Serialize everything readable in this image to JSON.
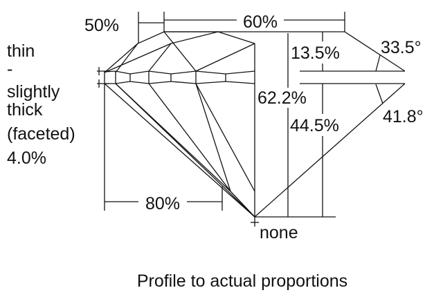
{
  "labels": {
    "crown_height_dim": "50%",
    "table_dim": "60%",
    "crown_depth": "13.5%",
    "crown_angle": "33.5°",
    "total_depth": "62.2%",
    "pavilion_depth": "44.5%",
    "pavilion_angle": "41.8°",
    "lower_half": "80%",
    "culet": "none"
  },
  "girdle": {
    "lines": [
      "thin",
      "-",
      "slightly",
      "thick",
      "(faceted)",
      "4.0%"
    ]
  },
  "caption": "Profile to actual proportions"
}
